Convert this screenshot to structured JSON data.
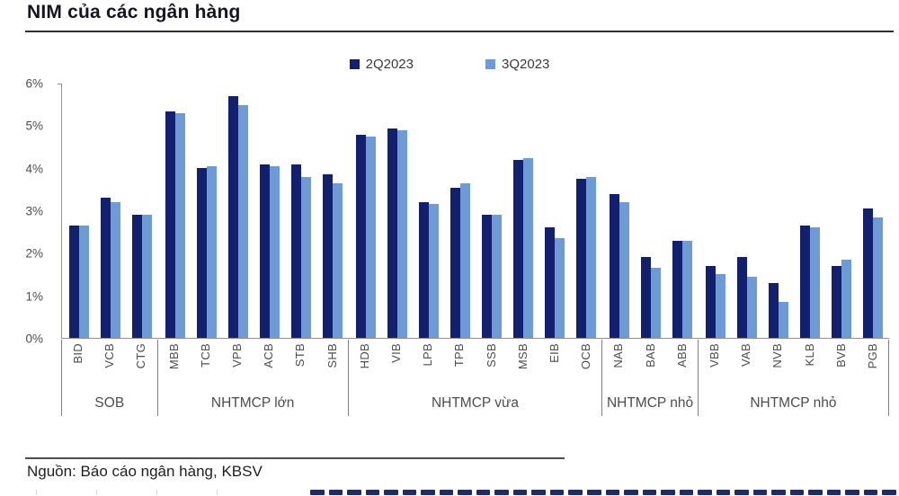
{
  "title": "NIM của các ngân hàng",
  "source": "Nguồn: Báo cáo ngân hàng, KBSV",
  "colors": {
    "series_2q2023": "#12206d",
    "series_3q2023": "#6e9ad6",
    "axis": "#8f8f8f",
    "text_gray": "#4d4d4d",
    "artifact_navy": "#1d2b6e"
  },
  "legend": [
    {
      "label": "2Q2023",
      "color": "#12206d"
    },
    {
      "label": "3Q2023",
      "color": "#6e9ad6"
    }
  ],
  "chart_data": {
    "type": "bar",
    "title": "NIM của các ngân hàng",
    "xlabel": "",
    "ylabel": "",
    "ylim": [
      0,
      6
    ],
    "yticks": [
      "6%",
      "5%",
      "4%",
      "3%",
      "2%",
      "1%",
      "0%"
    ],
    "grid": false,
    "legend_position": "top-center",
    "categories": [
      "BID",
      "VCB",
      "CTG",
      "MBB",
      "TCB",
      "VPB",
      "ACB",
      "STB",
      "SHB",
      "HDB",
      "VIB",
      "LPB",
      "TPB",
      "SSB",
      "MSB",
      "EIB",
      "OCB",
      "NAB",
      "BAB",
      "ABB",
      "VBB",
      "VAB",
      "NVB",
      "KLB",
      "BVB",
      "PGB"
    ],
    "groups": [
      {
        "label": "SOB",
        "count": 3
      },
      {
        "label": "NHTMCP lớn",
        "count": 6
      },
      {
        "label": "NHTMCP vừa",
        "count": 8
      },
      {
        "label": "NHTMCP nhỏ",
        "count": 3
      },
      {
        "label": "NHTMCP nhỏ",
        "count": 6
      }
    ],
    "series": [
      {
        "name": "2Q2023",
        "color": "#12206d",
        "values": [
          2.65,
          3.3,
          2.9,
          5.35,
          4.0,
          5.7,
          4.1,
          4.1,
          3.85,
          4.8,
          4.95,
          3.2,
          3.55,
          2.9,
          4.2,
          2.6,
          3.75,
          3.4,
          1.9,
          2.3,
          1.7,
          1.9,
          1.3,
          2.65,
          1.7,
          3.05
        ]
      },
      {
        "name": "3Q2023",
        "color": "#6e9ad6",
        "values": [
          2.65,
          3.2,
          2.9,
          5.3,
          4.05,
          5.5,
          4.05,
          3.8,
          3.65,
          4.75,
          4.9,
          3.15,
          3.65,
          2.9,
          4.25,
          2.35,
          3.8,
          3.2,
          1.65,
          2.3,
          1.5,
          1.45,
          0.85,
          2.6,
          1.85,
          2.85
        ]
      }
    ]
  }
}
